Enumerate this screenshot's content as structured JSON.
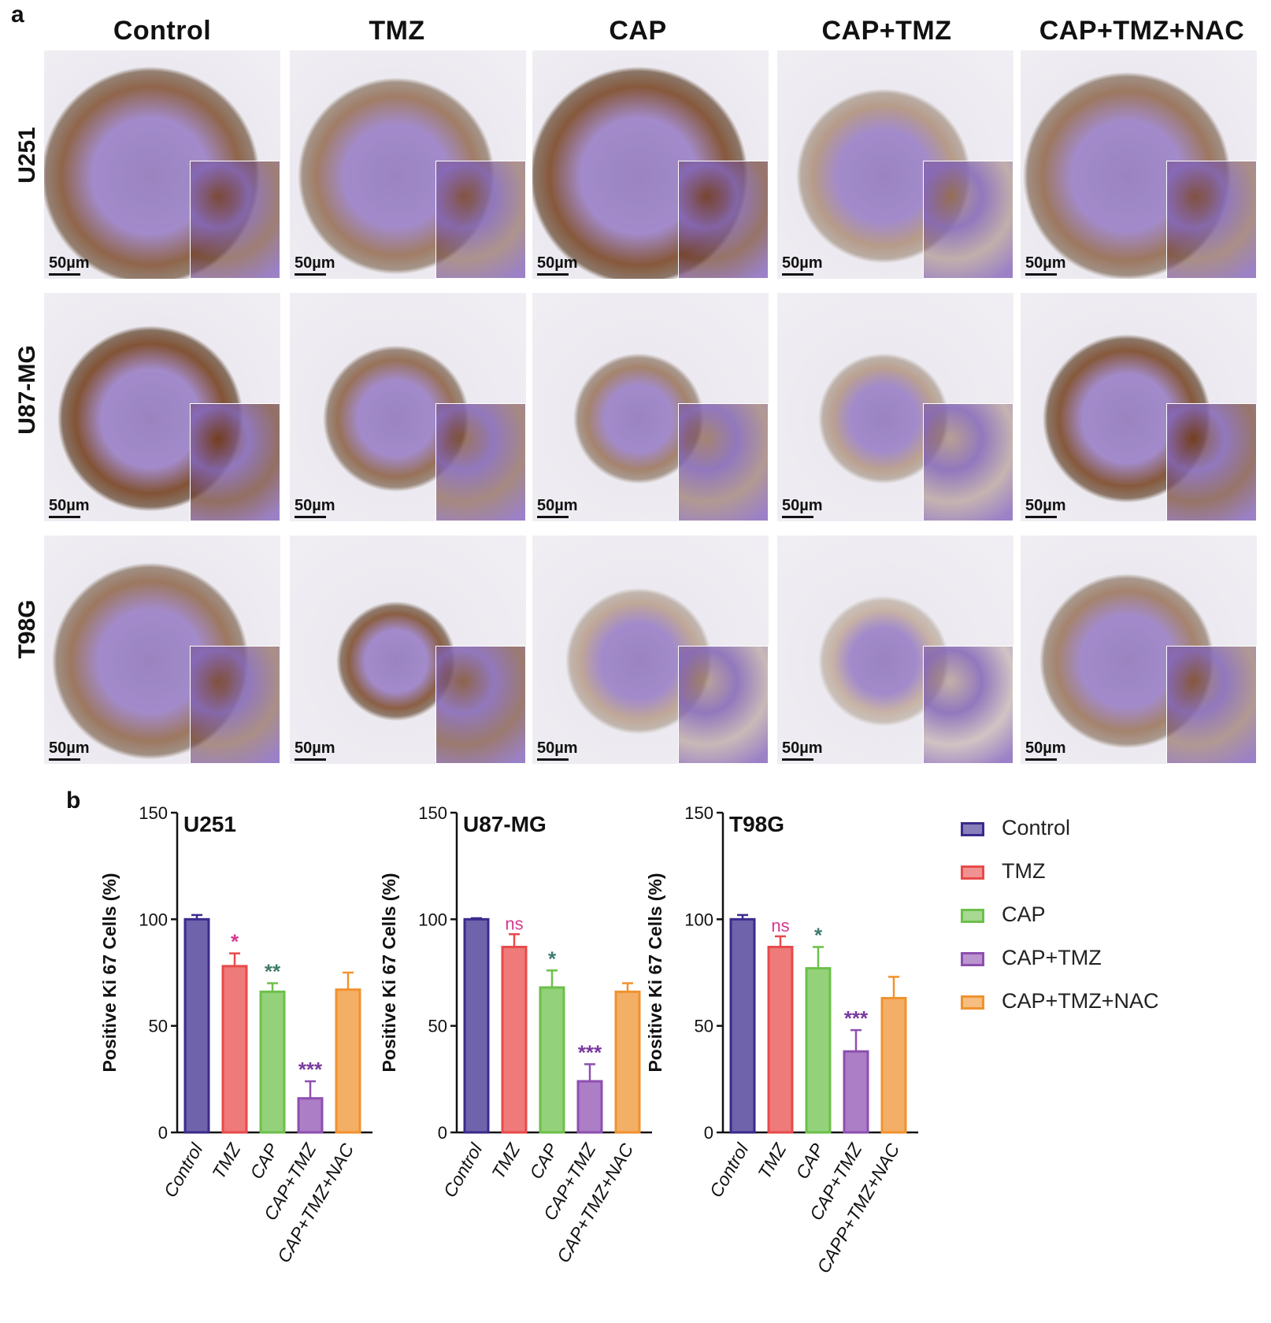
{
  "panel_a": {
    "letter": "a",
    "columns": [
      "Control",
      "TMZ",
      "CAP",
      "CAP+TMZ",
      "CAP+TMZ+NAC"
    ],
    "rows": [
      "U251",
      "U87-MG",
      "T98G"
    ],
    "scale_label": "50µm"
  },
  "panel_b": {
    "letter": "b"
  },
  "legend": [
    {
      "label": "Control",
      "color": "#3b2a8c"
    },
    {
      "label": "TMZ",
      "color": "#e84a4a"
    },
    {
      "label": "CAP",
      "color": "#6cc04a"
    },
    {
      "label": "CAP+TMZ",
      "color": "#8e4fb0"
    },
    {
      "label": "CAP+TMZ+NAC",
      "color": "#f0922e"
    }
  ],
  "chart_data": [
    {
      "type": "bar",
      "title": "U251",
      "ylabel": "Positive Ki 67 Cells (%)",
      "ylim": [
        0,
        150
      ],
      "yticks": [
        0,
        50,
        100,
        150
      ],
      "categories": [
        "Control",
        "TMZ",
        "CAP",
        "CAP+TMZ",
        "CAP+TMZ+NAC"
      ],
      "values": [
        100,
        78,
        66,
        16,
        67
      ],
      "errors": [
        2,
        6,
        4,
        8,
        8
      ],
      "significance": [
        "",
        "*",
        "**",
        "***",
        ""
      ],
      "sig_colors": [
        "",
        "#d6388f",
        "#3f7b6e",
        "#7a3a9e",
        ""
      ]
    },
    {
      "type": "bar",
      "title": "U87-MG",
      "ylabel": "Positive Ki 67 Cells (%)",
      "ylim": [
        0,
        150
      ],
      "yticks": [
        0,
        50,
        100,
        150
      ],
      "categories": [
        "Control",
        "TMZ",
        "CAP",
        "CAP+TMZ",
        "CAP+TMZ+NAC"
      ],
      "values": [
        100,
        87,
        68,
        24,
        66
      ],
      "errors": [
        0.5,
        6,
        8,
        8,
        4
      ],
      "significance": [
        "",
        "ns",
        "*",
        "***",
        ""
      ],
      "sig_colors": [
        "",
        "#d6388f",
        "#3f7b6e",
        "#7a3a9e",
        ""
      ]
    },
    {
      "type": "bar",
      "title": "T98G",
      "ylabel": "Positive Ki 67 Cells (%)",
      "ylim": [
        0,
        150
      ],
      "yticks": [
        0,
        50,
        100,
        150
      ],
      "categories": [
        "Control",
        "TMZ",
        "CAP",
        "CAP+TMZ",
        "CAPP+TMZ+NAC"
      ],
      "values": [
        100,
        87,
        77,
        38,
        63
      ],
      "errors": [
        2,
        5,
        10,
        10,
        10
      ],
      "significance": [
        "",
        "ns",
        "*",
        "***",
        ""
      ],
      "sig_colors": [
        "",
        "#d6388f",
        "#3f7b6e",
        "#7a3a9e",
        ""
      ]
    }
  ]
}
